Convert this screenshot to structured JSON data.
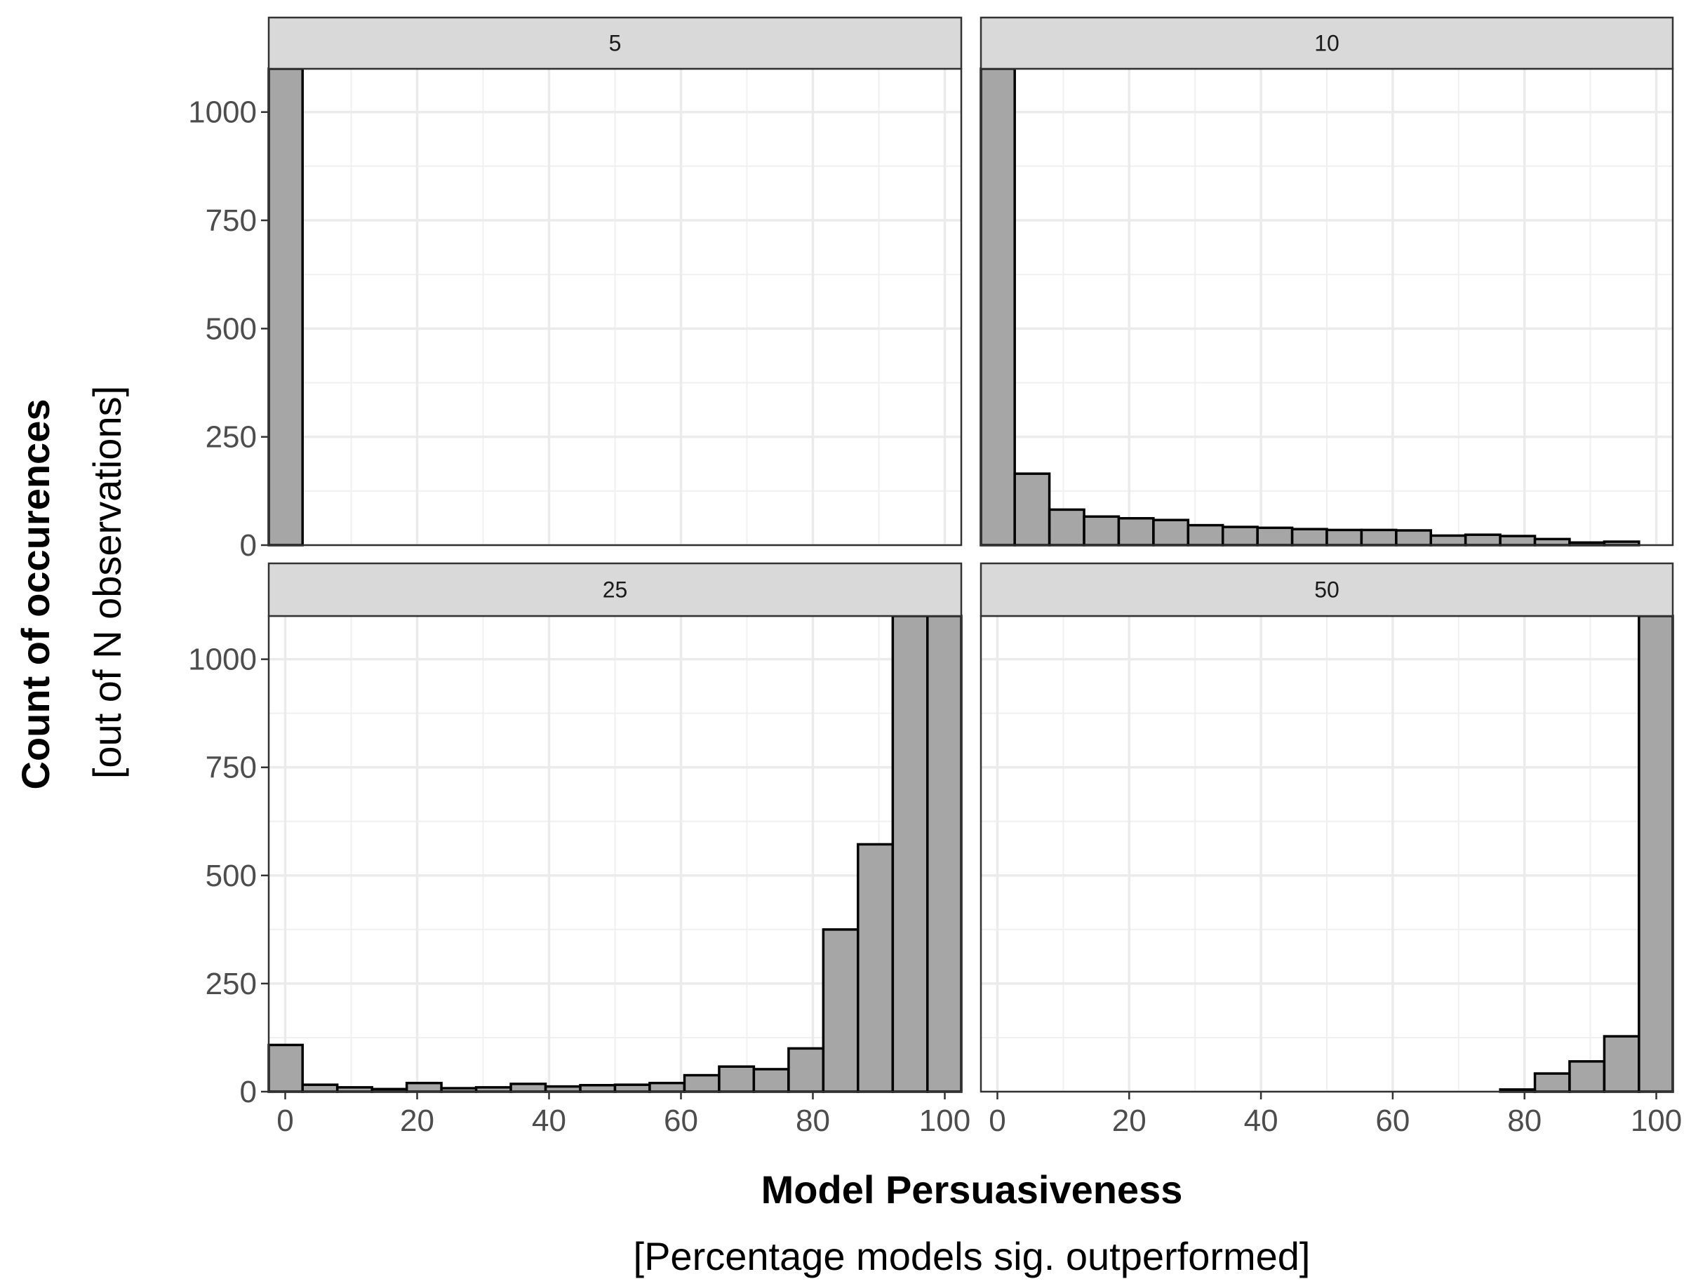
{
  "chart_data": {
    "type": "bar",
    "layout": "facet-grid 2x2",
    "xlabel": "Model Persuasiveness",
    "xlabel_sub": "[Percentage models sig. outperformed]",
    "ylabel": "Count of occurences",
    "ylabel_sub": "[out of N observations]",
    "xlim": [
      -2.5,
      102.5
    ],
    "ylim": [
      0,
      1100
    ],
    "x_ticks": [
      0,
      20,
      40,
      60,
      80,
      100
    ],
    "y_ticks": [
      0,
      250,
      500,
      750,
      1000
    ],
    "x_tick_labels": [
      "0",
      "20",
      "40",
      "60",
      "80",
      "100"
    ],
    "y_tick_labels": [
      "0",
      "250",
      "500",
      "750",
      "1000"
    ],
    "bin_width": 5.26,
    "bin_centers": [
      0,
      5.26,
      10.53,
      15.79,
      21.05,
      26.32,
      31.58,
      36.84,
      42.11,
      47.37,
      52.63,
      57.89,
      63.16,
      68.42,
      73.68,
      78.95,
      84.21,
      89.47,
      94.74,
      100
    ],
    "grid": true,
    "bar_fill": "#a6a6a6",
    "bar_stroke": "#000000",
    "panels": [
      {
        "label": "5",
        "values": [
          1100,
          0,
          0,
          0,
          0,
          0,
          0,
          0,
          0,
          0,
          0,
          0,
          0,
          0,
          0,
          0,
          0,
          0,
          0,
          0
        ]
      },
      {
        "label": "10",
        "values": [
          1100,
          165,
          82,
          66,
          62,
          58,
          46,
          42,
          40,
          37,
          35,
          35,
          34,
          22,
          24,
          21,
          14,
          6,
          8,
          0
        ]
      },
      {
        "label": "25",
        "values": [
          108,
          16,
          10,
          6,
          20,
          8,
          10,
          18,
          12,
          15,
          16,
          20,
          38,
          58,
          52,
          100,
          375,
          572,
          1100,
          1100
        ]
      },
      {
        "label": "50",
        "values": [
          0,
          0,
          0,
          0,
          0,
          0,
          0,
          0,
          0,
          0,
          0,
          0,
          0,
          0,
          0,
          5,
          42,
          70,
          128,
          1100
        ]
      }
    ]
  }
}
